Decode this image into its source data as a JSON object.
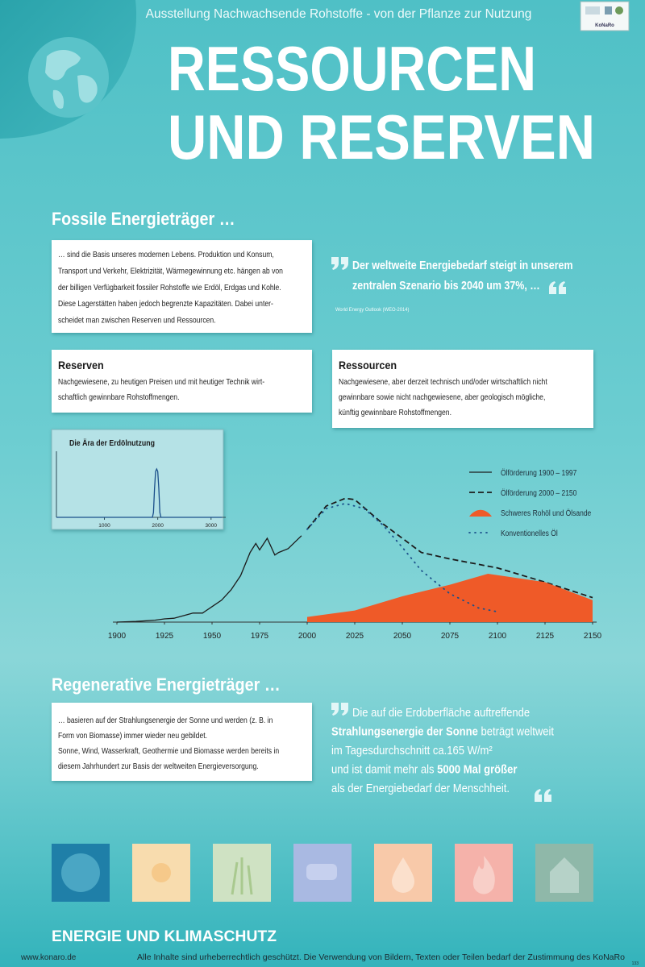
{
  "header": {
    "exhibition": "Ausstellung Nachwachsende Rohstoffe - von der Pflanze zur Nutzung",
    "logo": "KoNaRo",
    "title_lines": [
      "RESSOURCEN",
      "UND RESERVEN"
    ]
  },
  "fossil": {
    "heading": "Fossile Energieträger …",
    "intro_lines": [
      "… sind die Basis unseres modernen Lebens. Produktion und Konsum,",
      "Transport und Verkehr, Elektrizität, Wärmegewinnung etc. hängen ab von",
      "der billigen Verfügbarkeit fossiler Rohstoffe wie Erdöl, Erdgas und Kohle.",
      "Diese Lagerstätten haben jedoch begrenzte Kapazitäten. Dabei unter-",
      "scheidet man zwischen Reserven und Ressourcen."
    ],
    "quote_lines": [
      "Der weltweite Energiebedarf steigt in unserem",
      "zentralen Szenario bis 2040 um 37%, …"
    ],
    "quote_source": "World Energy Outlook (WEO-2014)",
    "reserves": {
      "title": "Reserven",
      "lines": [
        "Nachgewiesene, zu heutigen Preisen und mit heutiger Technik wirt-",
        "schaftlich gewinnbare Rohstoffmengen."
      ]
    },
    "resources": {
      "title": "Ressourcen",
      "lines": [
        "Nachgewiesene, aber derzeit technisch und/oder wirtschaftlich nicht",
        "gewinnbare sowie nicht nachgewiesene, aber geologisch mögliche,",
        "künftig gewinnbare Rohstoffmengen."
      ]
    }
  },
  "chart_data": [
    {
      "type": "line",
      "title": "Die Ära der Erdölnutzung",
      "xlim": [
        100,
        3200
      ],
      "ylim": [
        0,
        120
      ],
      "xticks": [
        1000,
        2000,
        3000
      ],
      "series": [
        {
          "color": "#1a4f8a",
          "x": [
            100,
            1900,
            1920,
            1940,
            1960,
            1980,
            2000,
            2020,
            2040,
            2060,
            3200
          ],
          "values": [
            0,
            0,
            10,
            60,
            95,
            100,
            95,
            60,
            10,
            0,
            0
          ]
        }
      ]
    },
    {
      "type": "line",
      "xlim": [
        1900,
        2150
      ],
      "ylim": [
        0,
        100
      ],
      "xticks": [
        1900,
        1925,
        1950,
        1975,
        2000,
        2025,
        2050,
        2075,
        2100,
        2125,
        2150
      ],
      "legend": "upper right",
      "series": [
        {
          "name": "Ölförderung 1900 – 1997",
          "color": "#1c1c1c",
          "style": "solid",
          "x": [
            1900,
            1910,
            1920,
            1925,
            1930,
            1940,
            1945,
            1950,
            1955,
            1960,
            1965,
            1970,
            1973,
            1975,
            1979,
            1983,
            1985,
            1990,
            1997
          ],
          "values": [
            0,
            0.5,
            1.5,
            2.5,
            3,
            7,
            7,
            12,
            17,
            25,
            36,
            54,
            61,
            56,
            65,
            52,
            54,
            57,
            67
          ]
        },
        {
          "name": "Ölförderung 2000 – 2150",
          "color": "#1c1c1c",
          "style": "dashed",
          "x": [
            2000,
            2010,
            2020,
            2025,
            2040,
            2050,
            2060,
            2075,
            2100,
            2125,
            2150
          ],
          "values": [
            72,
            90,
            96,
            95,
            76,
            65,
            54,
            49,
            42,
            31,
            19
          ]
        },
        {
          "name": "Schweres Rohöl und Ölsande",
          "color": "#ef5a28",
          "style": "area",
          "x": [
            2000,
            2025,
            2050,
            2075,
            2095,
            2125,
            2150
          ],
          "values": [
            4,
            9,
            20,
            29,
            37.5,
            31,
            17
          ]
        },
        {
          "name": "Konventionelles Öl",
          "color": "#1a4f8a",
          "style": "dotted",
          "x": [
            2000,
            2010,
            2020,
            2030,
            2040,
            2050,
            2060,
            2075,
            2090,
            2100
          ],
          "values": [
            72,
            88,
            92,
            88,
            75,
            58,
            40,
            22,
            11,
            8
          ]
        }
      ]
    }
  ],
  "regenerative": {
    "heading": "Regenerative  Energieträger …",
    "intro_lines": [
      "… basieren auf der Strahlungsenergie der Sonne und werden (z. B. in",
      "Form von Biomasse) immer wieder neu gebildet.",
      "Sonne, Wind, Wasserkraft, Geothermie und Biomasse werden bereits in",
      "diesem Jahrhundert zur Basis der weltweiten Energieversorgung."
    ],
    "quote_lines": [
      [
        {
          "text": "Die auf die Erdoberfläche auftreffende",
          "bold": false
        }
      ],
      [
        {
          "text": "Strahlungsenergie der Sonne",
          "bold": true
        },
        {
          "text": " beträgt weltweit",
          "bold": false
        }
      ],
      [
        {
          "text": "im Tagesdurchschnitt ca.165 W/m²",
          "bold": false
        }
      ],
      [
        {
          "text": "und ist damit mehr als ",
          "bold": false
        },
        {
          "text": "5000 Mal größer",
          "bold": true
        }
      ],
      [
        {
          "text": "als der Energiebedarf der Menschheit.",
          "bold": false
        }
      ]
    ]
  },
  "footer": {
    "topic": "ENERGIE UND KLIMASCHUTZ",
    "url": "www.konaro.de",
    "copyright": "Alle Inhalte sind urheberrechtlich geschützt. Die Verwendung von Bildern, Texten oder Teilen bedarf der Zustimmung des KoNaRo",
    "page_number": "133"
  }
}
